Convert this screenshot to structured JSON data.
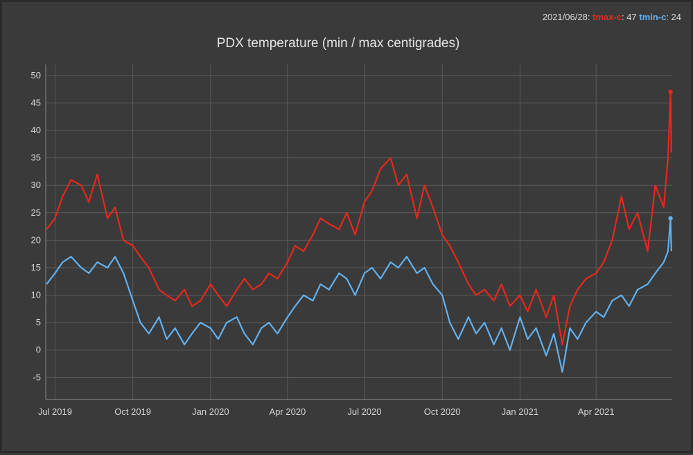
{
  "title": "PDX temperature (min / max centigrades)",
  "legend": {
    "date": "2021/06/28",
    "max_name": "tmax-c",
    "max_value": "47",
    "min_name": "tmin-c",
    "min_value": "24",
    "sep1": ": ",
    "sep2": ": ",
    "sep3": ": "
  },
  "colors": {
    "tmax": "#e8281b",
    "tmin": "#62b1ef",
    "grid": "#5c5c5c",
    "background": "#3a3a3a"
  },
  "chart_data": {
    "type": "line",
    "title": "PDX temperature (min / max centigrades)",
    "x_start": "2019-06-20",
    "x_end": "2021-06-30",
    "ylim": [
      -9,
      52
    ],
    "y_ticks": [
      50,
      45,
      40,
      35,
      30,
      25,
      20,
      15,
      10,
      5,
      0,
      -5
    ],
    "y_tick_labels": [
      "50",
      "45",
      "40",
      "35",
      "30",
      "25",
      "20",
      "15",
      "10",
      "5",
      "0",
      "-5"
    ],
    "x_ticks": [
      "2019-07-01",
      "2019-10-01",
      "2020-01-01",
      "2020-04-01",
      "2020-07-01",
      "2020-10-01",
      "2021-01-01",
      "2021-04-01"
    ],
    "x_tick_labels": [
      "Jul 2019",
      "Oct 2019",
      "Jan 2020",
      "Apr 2020",
      "Jul 2020",
      "Oct 2020",
      "Jan 2021",
      "Apr 2021"
    ],
    "grid": true,
    "legend_position": "top-right",
    "series": [
      {
        "name": "tmax-c",
        "dates": [
          "2019-06-21",
          "2019-07-01",
          "2019-07-10",
          "2019-07-20",
          "2019-08-01",
          "2019-08-10",
          "2019-08-20",
          "2019-09-01",
          "2019-09-10",
          "2019-09-20",
          "2019-10-01",
          "2019-10-10",
          "2019-10-20",
          "2019-11-01",
          "2019-11-10",
          "2019-11-20",
          "2019-12-01",
          "2019-12-10",
          "2019-12-20",
          "2020-01-01",
          "2020-01-10",
          "2020-01-20",
          "2020-02-01",
          "2020-02-10",
          "2020-02-20",
          "2020-03-01",
          "2020-03-10",
          "2020-03-20",
          "2020-04-01",
          "2020-04-10",
          "2020-04-20",
          "2020-05-01",
          "2020-05-10",
          "2020-05-20",
          "2020-06-01",
          "2020-06-10",
          "2020-06-20",
          "2020-07-01",
          "2020-07-10",
          "2020-07-20",
          "2020-08-01",
          "2020-08-10",
          "2020-08-20",
          "2020-09-01",
          "2020-09-10",
          "2020-09-20",
          "2020-10-01",
          "2020-10-10",
          "2020-10-20",
          "2020-11-01",
          "2020-11-10",
          "2020-11-20",
          "2020-12-01",
          "2020-12-10",
          "2020-12-20",
          "2021-01-01",
          "2021-01-10",
          "2021-01-20",
          "2021-02-01",
          "2021-02-10",
          "2021-02-20",
          "2021-03-01",
          "2021-03-10",
          "2021-03-20",
          "2021-04-01",
          "2021-04-10",
          "2021-04-20",
          "2021-05-01",
          "2021-05-10",
          "2021-05-20",
          "2021-06-01",
          "2021-06-10",
          "2021-06-20",
          "2021-06-25",
          "2021-06-28",
          "2021-06-29"
        ],
        "values": [
          22,
          24,
          28,
          31,
          30,
          27,
          32,
          24,
          26,
          20,
          19,
          17,
          15,
          11,
          10,
          9,
          11,
          8,
          9,
          12,
          10,
          8,
          11,
          13,
          11,
          12,
          14,
          13,
          16,
          19,
          18,
          21,
          24,
          23,
          22,
          25,
          21,
          27,
          29,
          33,
          35,
          30,
          32,
          24,
          30,
          26,
          21,
          19,
          16,
          12,
          10,
          11,
          9,
          12,
          8,
          10,
          7,
          11,
          6,
          10,
          1,
          8,
          11,
          13,
          14,
          16,
          20,
          28,
          22,
          25,
          18,
          30,
          26,
          35,
          47,
          36
        ]
      },
      {
        "name": "tmin-c",
        "dates": [
          "2019-06-21",
          "2019-07-01",
          "2019-07-10",
          "2019-07-20",
          "2019-08-01",
          "2019-08-10",
          "2019-08-20",
          "2019-09-01",
          "2019-09-10",
          "2019-09-20",
          "2019-10-01",
          "2019-10-10",
          "2019-10-20",
          "2019-11-01",
          "2019-11-10",
          "2019-11-20",
          "2019-12-01",
          "2019-12-10",
          "2019-12-20",
          "2020-01-01",
          "2020-01-10",
          "2020-01-20",
          "2020-02-01",
          "2020-02-10",
          "2020-02-20",
          "2020-03-01",
          "2020-03-10",
          "2020-03-20",
          "2020-04-01",
          "2020-04-10",
          "2020-04-20",
          "2020-05-01",
          "2020-05-10",
          "2020-05-20",
          "2020-06-01",
          "2020-06-10",
          "2020-06-20",
          "2020-07-01",
          "2020-07-10",
          "2020-07-20",
          "2020-08-01",
          "2020-08-10",
          "2020-08-20",
          "2020-09-01",
          "2020-09-10",
          "2020-09-20",
          "2020-10-01",
          "2020-10-10",
          "2020-10-20",
          "2020-11-01",
          "2020-11-10",
          "2020-11-20",
          "2020-12-01",
          "2020-12-10",
          "2020-12-20",
          "2021-01-01",
          "2021-01-10",
          "2021-01-20",
          "2021-02-01",
          "2021-02-10",
          "2021-02-20",
          "2021-03-01",
          "2021-03-10",
          "2021-03-20",
          "2021-04-01",
          "2021-04-10",
          "2021-04-20",
          "2021-05-01",
          "2021-05-10",
          "2021-05-20",
          "2021-06-01",
          "2021-06-10",
          "2021-06-20",
          "2021-06-25",
          "2021-06-28",
          "2021-06-29"
        ],
        "values": [
          12,
          14,
          16,
          17,
          15,
          14,
          16,
          15,
          17,
          14,
          9,
          5,
          3,
          6,
          2,
          4,
          1,
          3,
          5,
          4,
          2,
          5,
          6,
          3,
          1,
          4,
          5,
          3,
          6,
          8,
          10,
          9,
          12,
          11,
          14,
          13,
          10,
          14,
          15,
          13,
          16,
          15,
          17,
          14,
          15,
          12,
          10,
          5,
          2,
          6,
          3,
          5,
          1,
          4,
          0,
          6,
          2,
          4,
          -1,
          3,
          -4,
          4,
          2,
          5,
          7,
          6,
          9,
          10,
          8,
          11,
          12,
          14,
          16,
          18,
          24,
          18
        ]
      }
    ]
  }
}
